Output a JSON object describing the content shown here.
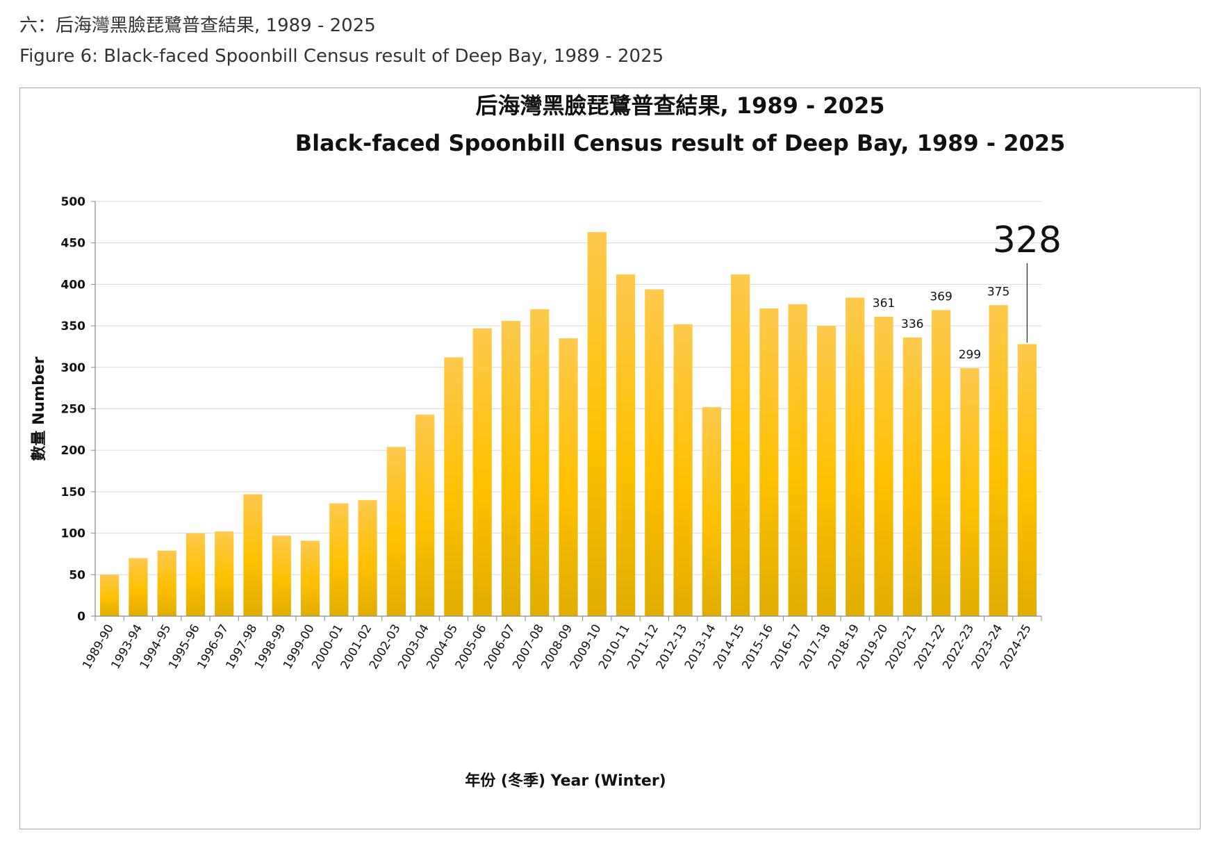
{
  "header": {
    "caption_zh": "六：后海灣黑臉琵鷺普查結果, 1989 - 2025",
    "caption_en": "Figure 6: Black-faced Spoonbill Census result of Deep Bay, 1989 - 2025"
  },
  "chart_data": {
    "type": "bar",
    "title_zh": "后海灣黑臉琵鷺普查結果, 1989 - 2025",
    "title_en": "Black-faced Spoonbill Census result of Deep Bay, 1989 - 2025",
    "ylabel": "數量  Number",
    "xlabel": "年份 (冬季)  Year (Winter)",
    "ylim": [
      0,
      500
    ],
    "yticks": [
      0,
      50,
      100,
      150,
      200,
      250,
      300,
      350,
      400,
      450,
      500
    ],
    "grid": true,
    "categories": [
      "1989-90",
      "1993-94",
      "1994-95",
      "1995-96",
      "1996-97",
      "1997-98",
      "1998-99",
      "1999-00",
      "2000-01",
      "2001-02",
      "2002-03",
      "2003-04",
      "2004-05",
      "2005-06",
      "2006-07",
      "2007-08",
      "2008-09",
      "2009-10",
      "2010-11",
      "2011-12",
      "2012-13",
      "2013-14",
      "2014-15",
      "2015-16",
      "2016-17",
      "2017-18",
      "2018-19",
      "2019-20",
      "2020-21",
      "2021-22",
      "2022-23",
      "2023-24",
      "2024-25"
    ],
    "values": [
      50,
      70,
      79,
      100,
      102,
      147,
      97,
      91,
      136,
      140,
      204,
      243,
      312,
      347,
      356,
      370,
      335,
      463,
      412,
      394,
      352,
      252,
      412,
      371,
      376,
      350,
      384,
      361,
      336,
      369,
      299,
      375,
      328
    ],
    "data_labels": [
      {
        "category": "2019-20",
        "text": "361"
      },
      {
        "category": "2020-21",
        "text": "336"
      },
      {
        "category": "2021-22",
        "text": "369"
      },
      {
        "category": "2022-23",
        "text": "299"
      },
      {
        "category": "2023-24",
        "text": "375"
      }
    ],
    "highlight": {
      "category": "2024-25",
      "text": "328"
    },
    "bar_color_top": "#ffc94d",
    "bar_color_mid": "#ffc000",
    "bar_color_bottom": "#e0ad00",
    "grid_color": "#d9d9d9",
    "axis_color": "#888888"
  }
}
